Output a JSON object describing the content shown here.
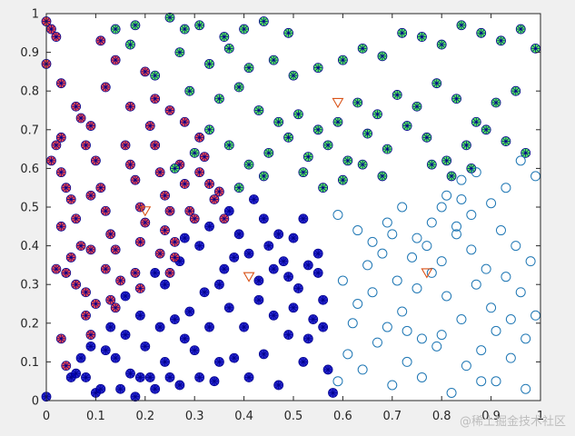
{
  "chart_data": {
    "type": "scatter",
    "title": "",
    "xlabel": "",
    "ylabel": "",
    "xlim": [
      0,
      1
    ],
    "ylim": [
      0,
      1
    ],
    "xticks": [
      "0",
      "0.1",
      "0.2",
      "0.3",
      "0.4",
      "0.5",
      "0.6",
      "0.7",
      "0.8",
      "0.9",
      "1"
    ],
    "yticks": [
      "0",
      "0.1",
      "0.2",
      "0.3",
      "0.4",
      "0.5",
      "0.6",
      "0.7",
      "0.8",
      "0.9",
      "1"
    ],
    "grid": false,
    "series": [
      {
        "marker": "circle-asterisk",
        "color": "#0000cc",
        "edge": "#00008b",
        "points": [
          [
            0.0,
            0.01
          ],
          [
            0.05,
            0.06
          ],
          [
            0.06,
            0.07
          ],
          [
            0.07,
            0.11
          ],
          [
            0.08,
            0.06
          ],
          [
            0.09,
            0.14
          ],
          [
            0.1,
            0.02
          ],
          [
            0.11,
            0.03
          ],
          [
            0.12,
            0.13
          ],
          [
            0.13,
            0.19
          ],
          [
            0.14,
            0.11
          ],
          [
            0.15,
            0.03
          ],
          [
            0.16,
            0.17
          ],
          [
            0.17,
            0.07
          ],
          [
            0.18,
            0.01
          ],
          [
            0.19,
            0.06
          ],
          [
            0.2,
            0.14
          ],
          [
            0.21,
            0.06
          ],
          [
            0.22,
            0.03
          ],
          [
            0.23,
            0.19
          ],
          [
            0.24,
            0.1
          ],
          [
            0.25,
            0.06
          ],
          [
            0.26,
            0.21
          ],
          [
            0.27,
            0.04
          ],
          [
            0.28,
            0.16
          ],
          [
            0.29,
            0.23
          ],
          [
            0.3,
            0.13
          ],
          [
            0.31,
            0.06
          ],
          [
            0.32,
            0.28
          ],
          [
            0.33,
            0.19
          ],
          [
            0.34,
            0.05
          ],
          [
            0.35,
            0.1
          ],
          [
            0.36,
            0.34
          ],
          [
            0.37,
            0.24
          ],
          [
            0.38,
            0.11
          ],
          [
            0.39,
            0.43
          ],
          [
            0.4,
            0.19
          ],
          [
            0.41,
            0.06
          ],
          [
            0.42,
            0.52
          ],
          [
            0.43,
            0.31
          ],
          [
            0.44,
            0.12
          ],
          [
            0.45,
            0.4
          ],
          [
            0.46,
            0.22
          ],
          [
            0.47,
            0.04
          ],
          [
            0.48,
            0.36
          ],
          [
            0.49,
            0.17
          ],
          [
            0.5,
            0.42
          ],
          [
            0.51,
            0.29
          ],
          [
            0.52,
            0.1
          ],
          [
            0.53,
            0.35
          ],
          [
            0.54,
            0.21
          ],
          [
            0.55,
            0.33
          ],
          [
            0.56,
            0.26
          ],
          [
            0.57,
            0.08
          ],
          [
            0.24,
            0.3
          ],
          [
            0.28,
            0.42
          ],
          [
            0.33,
            0.45
          ],
          [
            0.37,
            0.49
          ],
          [
            0.41,
            0.38
          ],
          [
            0.44,
            0.47
          ],
          [
            0.47,
            0.43
          ],
          [
            0.49,
            0.32
          ],
          [
            0.52,
            0.47
          ],
          [
            0.55,
            0.38
          ],
          [
            0.58,
            0.02
          ],
          [
            0.16,
            0.27
          ],
          [
            0.19,
            0.22
          ],
          [
            0.22,
            0.33
          ],
          [
            0.27,
            0.36
          ],
          [
            0.31,
            0.4
          ],
          [
            0.35,
            0.3
          ],
          [
            0.38,
            0.37
          ],
          [
            0.43,
            0.26
          ],
          [
            0.46,
            0.34
          ],
          [
            0.5,
            0.24
          ],
          [
            0.53,
            0.16
          ],
          [
            0.56,
            0.19
          ]
        ]
      },
      {
        "marker": "circle-asterisk",
        "color": "#ff2a2a",
        "edge": "#00008b",
        "points": [
          [
            0.0,
            0.98
          ],
          [
            0.01,
            0.96
          ],
          [
            0.02,
            0.94
          ],
          [
            0.0,
            0.87
          ],
          [
            0.03,
            0.82
          ],
          [
            0.03,
            0.68
          ],
          [
            0.02,
            0.66
          ],
          [
            0.01,
            0.62
          ],
          [
            0.03,
            0.59
          ],
          [
            0.04,
            0.55
          ],
          [
            0.05,
            0.52
          ],
          [
            0.03,
            0.45
          ],
          [
            0.06,
            0.47
          ],
          [
            0.07,
            0.4
          ],
          [
            0.05,
            0.37
          ],
          [
            0.04,
            0.33
          ],
          [
            0.06,
            0.3
          ],
          [
            0.08,
            0.28
          ],
          [
            0.1,
            0.25
          ],
          [
            0.08,
            0.22
          ],
          [
            0.09,
            0.17
          ],
          [
            0.04,
            0.09
          ],
          [
            0.03,
            0.16
          ],
          [
            0.06,
            0.76
          ],
          [
            0.07,
            0.73
          ],
          [
            0.08,
            0.66
          ],
          [
            0.09,
            0.71
          ],
          [
            0.1,
            0.62
          ],
          [
            0.11,
            0.55
          ],
          [
            0.12,
            0.49
          ],
          [
            0.13,
            0.43
          ],
          [
            0.14,
            0.39
          ],
          [
            0.12,
            0.34
          ],
          [
            0.15,
            0.31
          ],
          [
            0.13,
            0.26
          ],
          [
            0.16,
            0.66
          ],
          [
            0.17,
            0.61
          ],
          [
            0.18,
            0.57
          ],
          [
            0.19,
            0.5
          ],
          [
            0.2,
            0.46
          ],
          [
            0.19,
            0.41
          ],
          [
            0.18,
            0.33
          ],
          [
            0.21,
            0.71
          ],
          [
            0.22,
            0.66
          ],
          [
            0.23,
            0.59
          ],
          [
            0.24,
            0.53
          ],
          [
            0.25,
            0.49
          ],
          [
            0.24,
            0.44
          ],
          [
            0.26,
            0.37
          ],
          [
            0.25,
            0.33
          ],
          [
            0.27,
            0.61
          ],
          [
            0.28,
            0.56
          ],
          [
            0.29,
            0.49
          ],
          [
            0.3,
            0.47
          ],
          [
            0.31,
            0.59
          ],
          [
            0.32,
            0.63
          ],
          [
            0.33,
            0.56
          ],
          [
            0.34,
            0.52
          ],
          [
            0.35,
            0.54
          ],
          [
            0.36,
            0.47
          ],
          [
            0.11,
            0.93
          ],
          [
            0.12,
            0.81
          ],
          [
            0.14,
            0.88
          ],
          [
            0.17,
            0.76
          ],
          [
            0.2,
            0.85
          ],
          [
            0.22,
            0.78
          ],
          [
            0.25,
            0.75
          ],
          [
            0.28,
            0.72
          ],
          [
            0.31,
            0.68
          ],
          [
            0.09,
            0.39
          ],
          [
            0.14,
            0.24
          ],
          [
            0.19,
            0.29
          ],
          [
            0.23,
            0.38
          ],
          [
            0.26,
            0.41
          ],
          [
            0.02,
            0.34
          ],
          [
            0.09,
            0.53
          ]
        ]
      },
      {
        "marker": "circle-asterisk",
        "color": "#3cff3c",
        "edge": "#00008b",
        "points": [
          [
            0.14,
            0.96
          ],
          [
            0.18,
            0.97
          ],
          [
            0.25,
            0.99
          ],
          [
            0.28,
            0.96
          ],
          [
            0.31,
            0.97
          ],
          [
            0.36,
            0.94
          ],
          [
            0.4,
            0.96
          ],
          [
            0.44,
            0.98
          ],
          [
            0.49,
            0.95
          ],
          [
            0.17,
            0.92
          ],
          [
            0.27,
            0.9
          ],
          [
            0.33,
            0.87
          ],
          [
            0.37,
            0.91
          ],
          [
            0.41,
            0.86
          ],
          [
            0.46,
            0.88
          ],
          [
            0.5,
            0.84
          ],
          [
            0.55,
            0.86
          ],
          [
            0.6,
            0.88
          ],
          [
            0.64,
            0.91
          ],
          [
            0.68,
            0.89
          ],
          [
            0.72,
            0.95
          ],
          [
            0.76,
            0.94
          ],
          [
            0.8,
            0.92
          ],
          [
            0.84,
            0.97
          ],
          [
            0.88,
            0.95
          ],
          [
            0.92,
            0.93
          ],
          [
            0.96,
            0.96
          ],
          [
            0.99,
            0.91
          ],
          [
            0.22,
            0.84
          ],
          [
            0.29,
            0.8
          ],
          [
            0.35,
            0.78
          ],
          [
            0.39,
            0.81
          ],
          [
            0.43,
            0.75
          ],
          [
            0.47,
            0.72
          ],
          [
            0.51,
            0.74
          ],
          [
            0.55,
            0.7
          ],
          [
            0.59,
            0.72
          ],
          [
            0.63,
            0.77
          ],
          [
            0.67,
            0.74
          ],
          [
            0.71,
            0.79
          ],
          [
            0.75,
            0.76
          ],
          [
            0.79,
            0.82
          ],
          [
            0.83,
            0.78
          ],
          [
            0.87,
            0.72
          ],
          [
            0.91,
            0.77
          ],
          [
            0.95,
            0.8
          ],
          [
            0.33,
            0.7
          ],
          [
            0.37,
            0.66
          ],
          [
            0.41,
            0.61
          ],
          [
            0.45,
            0.64
          ],
          [
            0.49,
            0.68
          ],
          [
            0.53,
            0.63
          ],
          [
            0.57,
            0.66
          ],
          [
            0.61,
            0.62
          ],
          [
            0.65,
            0.69
          ],
          [
            0.69,
            0.65
          ],
          [
            0.73,
            0.71
          ],
          [
            0.77,
            0.68
          ],
          [
            0.81,
            0.62
          ],
          [
            0.85,
            0.66
          ],
          [
            0.89,
            0.7
          ],
          [
            0.93,
            0.67
          ],
          [
            0.97,
            0.64
          ],
          [
            0.3,
            0.64
          ],
          [
            0.26,
            0.6
          ],
          [
            0.39,
            0.55
          ],
          [
            0.44,
            0.58
          ],
          [
            0.52,
            0.59
          ],
          [
            0.56,
            0.55
          ],
          [
            0.6,
            0.57
          ],
          [
            0.64,
            0.61
          ],
          [
            0.68,
            0.58
          ],
          [
            0.78,
            0.61
          ],
          [
            0.82,
            0.58
          ],
          [
            0.86,
            0.6
          ]
        ]
      },
      {
        "marker": "circle-open",
        "color": "none",
        "edge": "#1f77b4",
        "points": [
          [
            0.59,
            0.48
          ],
          [
            0.63,
            0.44
          ],
          [
            0.66,
            0.41
          ],
          [
            0.69,
            0.46
          ],
          [
            0.72,
            0.5
          ],
          [
            0.75,
            0.42
          ],
          [
            0.78,
            0.46
          ],
          [
            0.81,
            0.53
          ],
          [
            0.84,
            0.57
          ],
          [
            0.87,
            0.59
          ],
          [
            0.9,
            0.51
          ],
          [
            0.93,
            0.55
          ],
          [
            0.96,
            0.62
          ],
          [
            0.99,
            0.58
          ],
          [
            0.6,
            0.31
          ],
          [
            0.63,
            0.25
          ],
          [
            0.66,
            0.28
          ],
          [
            0.69,
            0.19
          ],
          [
            0.72,
            0.23
          ],
          [
            0.75,
            0.29
          ],
          [
            0.78,
            0.33
          ],
          [
            0.81,
            0.27
          ],
          [
            0.84,
            0.21
          ],
          [
            0.87,
            0.3
          ],
          [
            0.9,
            0.24
          ],
          [
            0.93,
            0.32
          ],
          [
            0.96,
            0.28
          ],
          [
            0.99,
            0.22
          ],
          [
            0.61,
            0.12
          ],
          [
            0.64,
            0.08
          ],
          [
            0.67,
            0.15
          ],
          [
            0.7,
            0.04
          ],
          [
            0.73,
            0.1
          ],
          [
            0.76,
            0.06
          ],
          [
            0.79,
            0.14
          ],
          [
            0.82,
            0.02
          ],
          [
            0.85,
            0.09
          ],
          [
            0.88,
            0.13
          ],
          [
            0.91,
            0.05
          ],
          [
            0.94,
            0.11
          ],
          [
            0.97,
            0.03
          ],
          [
            0.59,
            0.05
          ],
          [
            0.62,
            0.2
          ],
          [
            0.65,
            0.35
          ],
          [
            0.68,
            0.38
          ],
          [
            0.71,
            0.31
          ],
          [
            0.74,
            0.37
          ],
          [
            0.77,
            0.4
          ],
          [
            0.8,
            0.36
          ],
          [
            0.83,
            0.43
          ],
          [
            0.86,
            0.39
          ],
          [
            0.89,
            0.34
          ],
          [
            0.92,
            0.44
          ],
          [
            0.95,
            0.4
          ],
          [
            0.98,
            0.36
          ],
          [
            0.8,
            0.17
          ],
          [
            0.83,
            0.45
          ],
          [
            0.86,
            0.48
          ],
          [
            0.7,
            0.43
          ],
          [
            0.73,
            0.18
          ],
          [
            0.76,
            0.16
          ],
          [
            0.88,
            0.05
          ],
          [
            0.91,
            0.18
          ],
          [
            0.94,
            0.21
          ],
          [
            0.97,
            0.16
          ],
          [
            0.84,
            0.52
          ],
          [
            0.8,
            0.5
          ]
        ]
      },
      {
        "marker": "triangle-down",
        "color": "none",
        "edge": "#d95319",
        "points": [
          [
            0.59,
            0.77
          ],
          [
            0.41,
            0.32
          ],
          [
            0.77,
            0.33
          ],
          [
            0.2,
            0.49
          ]
        ]
      }
    ]
  },
  "watermark": "@稀土掘金技术社区"
}
